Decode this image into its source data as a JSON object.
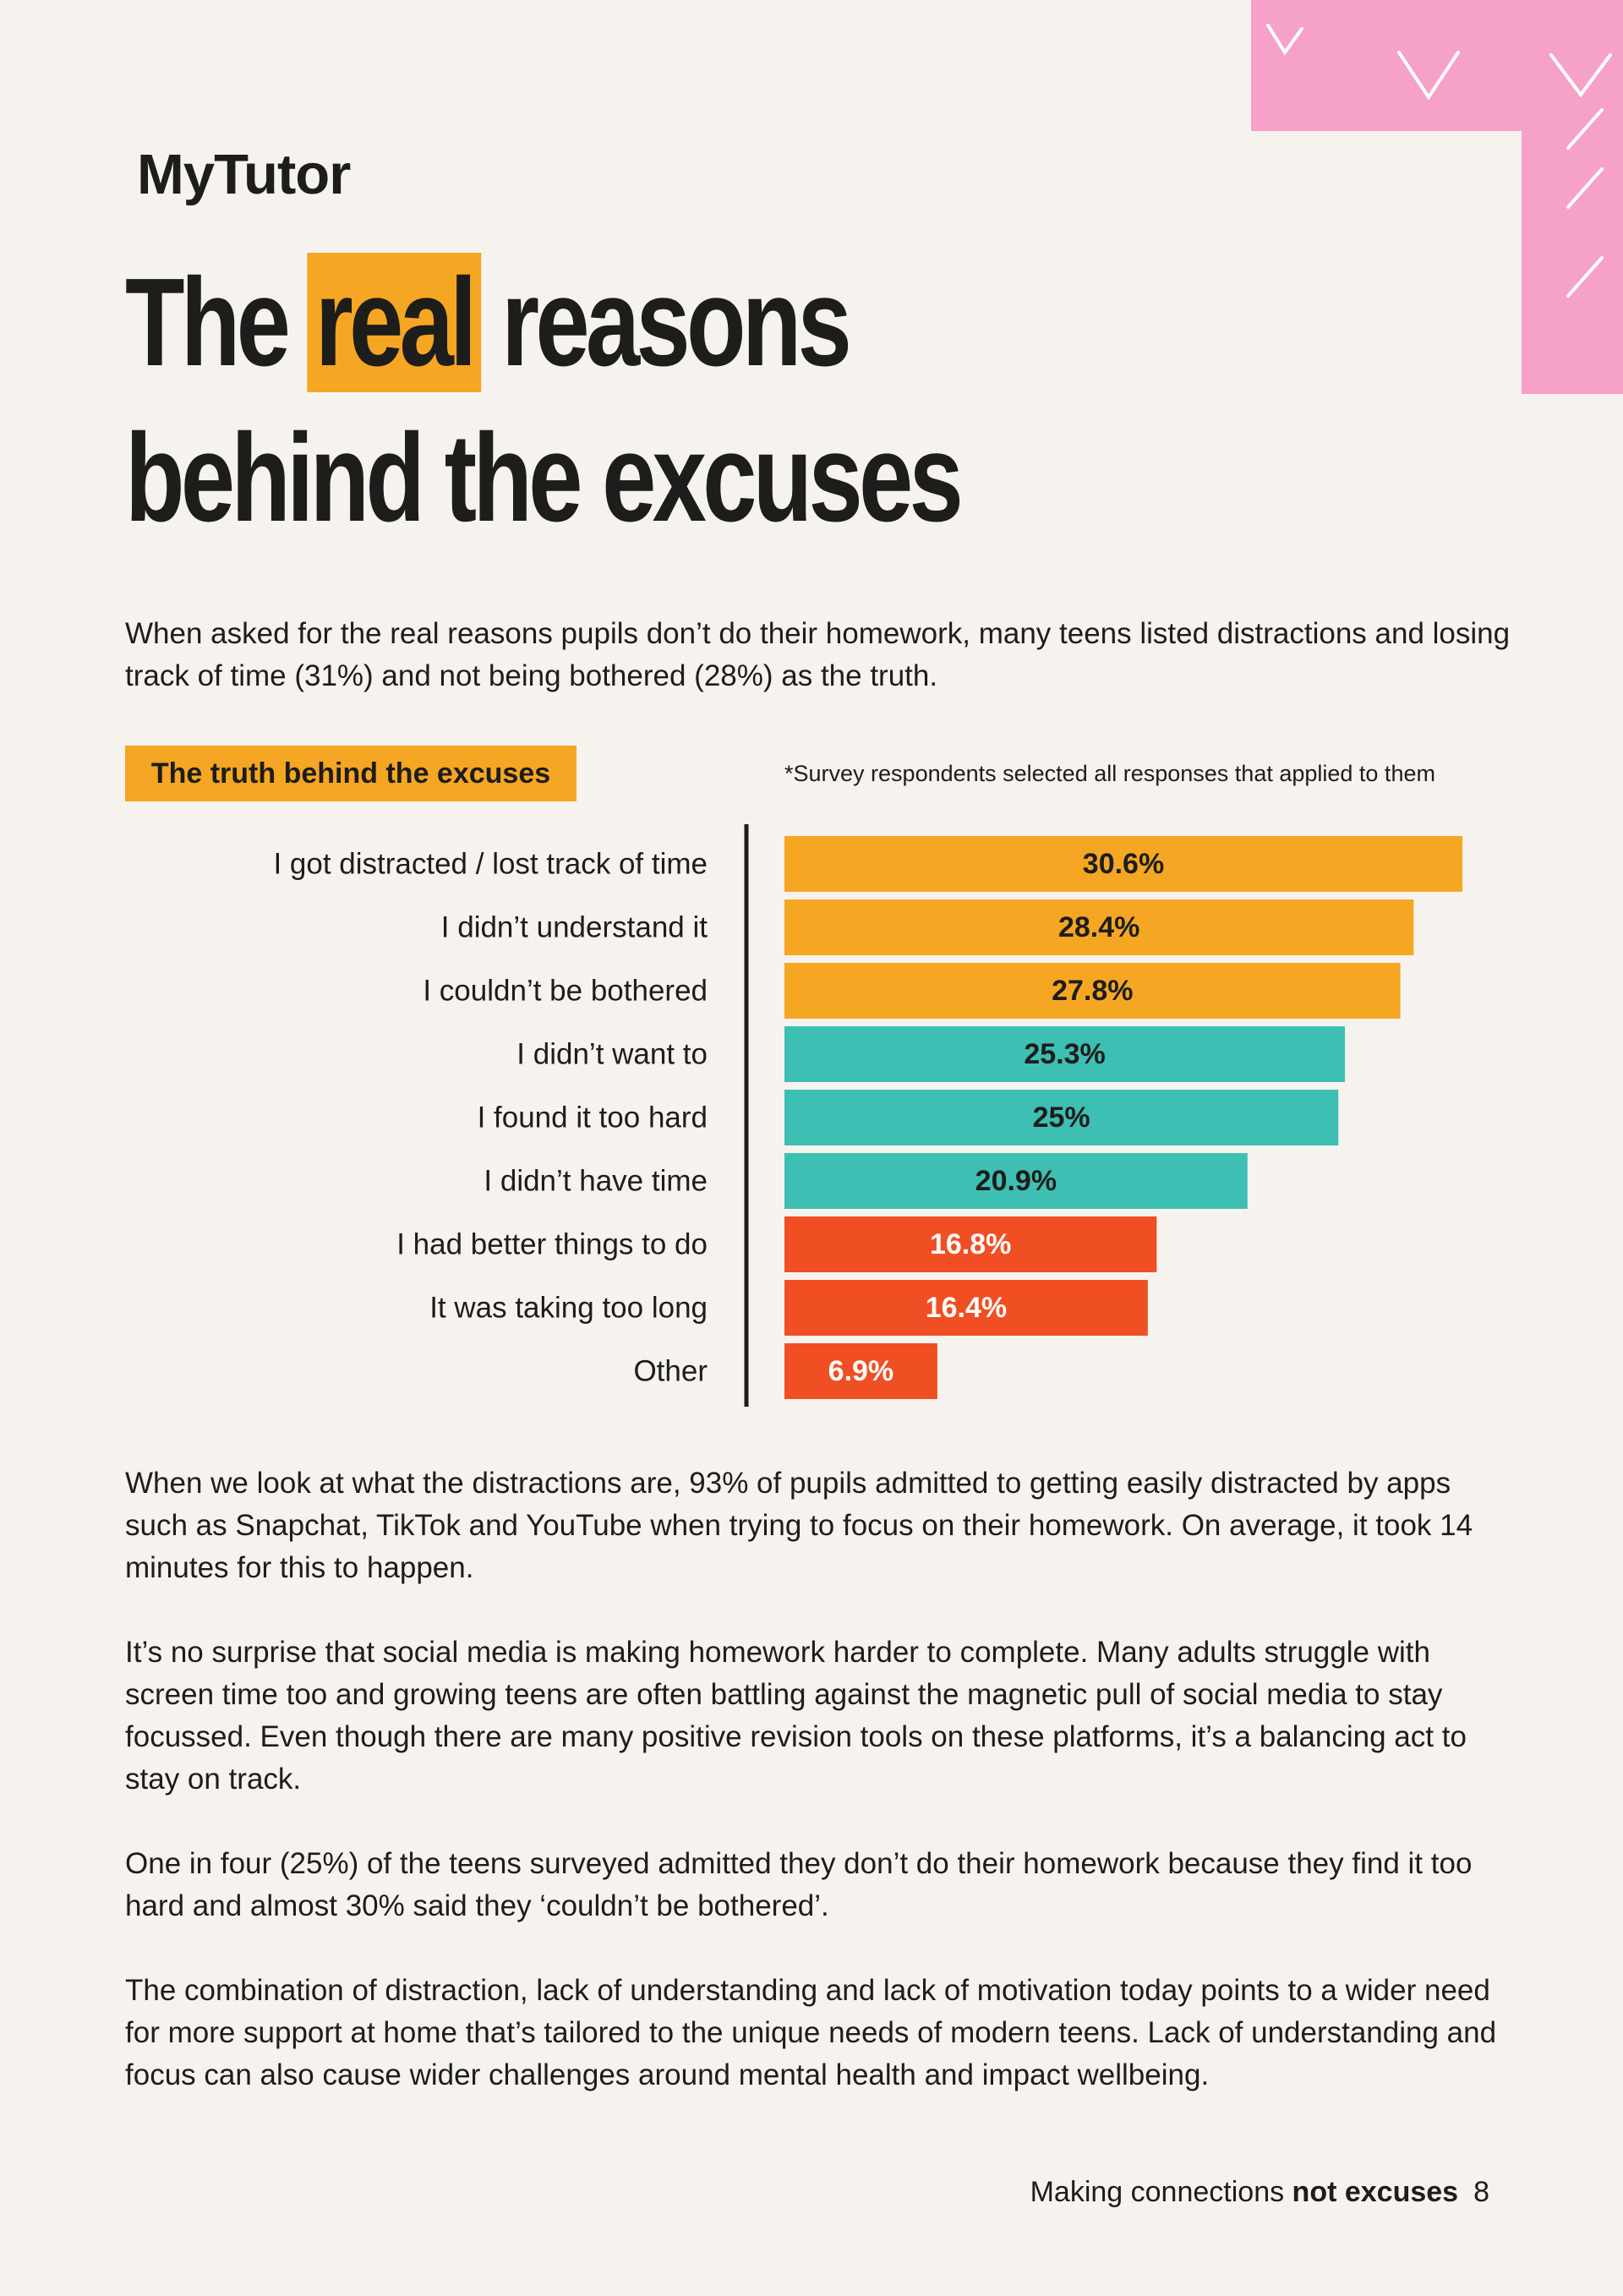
{
  "brand": {
    "logo_text": "MyTutor"
  },
  "headline": {
    "part1": "The ",
    "highlight": "real",
    "part2": " reasons",
    "line2": "behind the excuses"
  },
  "intro": "When asked for the real reasons pupils don’t do their homework, many teens listed distractions and losing track of time (31%) and not being bothered (28%) as the truth.",
  "chart_header": {
    "chip": "The truth behind the excuses",
    "note": "*Survey respondents selected all responses that applied to them"
  },
  "chart_data": {
    "type": "bar",
    "orientation": "horizontal",
    "title": "The truth behind the excuses",
    "categories": [
      "I got distracted / lost track of time",
      "I didn’t understand it",
      "I couldn’t be bothered",
      "I didn’t want to",
      "I found it too hard",
      "I didn’t have time",
      "I had better things to do",
      "It was taking too long",
      "Other"
    ],
    "values": [
      30.6,
      28.4,
      27.8,
      25.3,
      25,
      20.9,
      16.8,
      16.4,
      6.9
    ],
    "value_labels": [
      "30.6%",
      "28.4%",
      "27.8%",
      "25.3%",
      "25%",
      "20.9%",
      "16.8%",
      "16.4%",
      "6.9%"
    ],
    "bar_colors": [
      "#f5a623",
      "#f5a623",
      "#f5a623",
      "#3dbfb3",
      "#3dbfb3",
      "#3dbfb3",
      "#f04e23",
      "#f04e23",
      "#f04e23"
    ],
    "label_colors": [
      "#1d1d1b",
      "#1d1d1b",
      "#1d1d1b",
      "#1d1d1b",
      "#1d1d1b",
      "#1d1d1b",
      "#ffffff",
      "#ffffff",
      "#ffffff"
    ]
  },
  "body": {
    "p1": "When we look at what the distractions are, 93% of pupils admitted to getting easily distracted by apps such as Snapchat, TikTok and YouTube when trying to focus on their homework. On average, it took 14 minutes for this to happen.",
    "p2": "It’s no surprise that social media is making homework harder to complete. Many adults struggle with screen time too and growing teens are often battling against the magnetic pull of social media to stay focussed. Even though there are many positive revision tools on these platforms, it’s a balancing act to stay on track.",
    "p3": "One in four (25%) of the teens surveyed admitted they don’t do their homework because they find it too hard and almost 30% said they ‘couldn’t be bothered’.",
    "p4": "The combination of distraction, lack of understanding and lack of motivation today points to a wider need for more support at home that’s tailored to the unique needs of modern teens. Lack of understanding and focus can also cause wider challenges around mental health and impact wellbeing."
  },
  "footer": {
    "text": "Making connections ",
    "bold": "not excuses",
    "page": "8"
  },
  "colors": {
    "accent_orange": "#f5a623",
    "teal": "#3dbfb3",
    "red": "#f04e23",
    "pink": "#f5a1c8",
    "background": "#f6f2ee"
  }
}
